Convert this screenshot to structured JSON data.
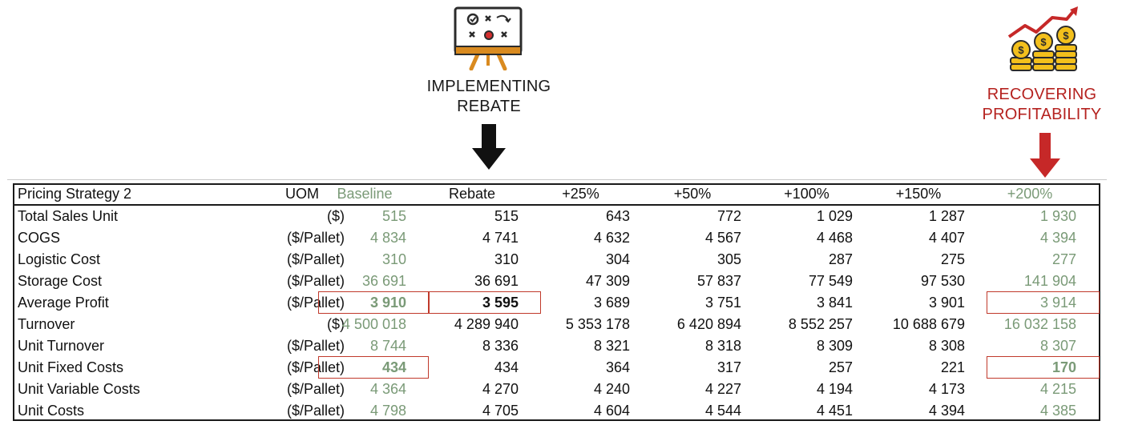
{
  "annotations": {
    "rebate": {
      "line1": "IMPLEMENTING",
      "line2": "REBATE",
      "color": "#1a1a1a"
    },
    "profit": {
      "line1": "RECOVERING",
      "line2": "PROFITABILITY",
      "color": "#b5221f"
    },
    "icons": [
      "strategy-board-icon",
      "rising-coins-icon",
      "arrow-down-icon"
    ]
  },
  "colors": {
    "green_text": "#7a9a77",
    "highlight_box": "#c0392b",
    "red_arrow": "#c62828",
    "black_arrow": "#111111"
  },
  "table": {
    "headers": {
      "label": "Pricing Strategy 2",
      "uom": "UOM",
      "baseline": "Baseline",
      "rebate": "Rebate",
      "p25": "+25%",
      "p50": "+50%",
      "p100": "+100%",
      "p150": "+150%",
      "p200": "+200%"
    },
    "rows": [
      {
        "label": "Total Sales Unit",
        "uom": "($)",
        "baseline": "515",
        "rebate": "515",
        "p25": "643",
        "p50": "772",
        "p100": "1 029",
        "p150": "1 287",
        "p200": "1 930"
      },
      {
        "label": "COGS",
        "uom": "($/Pallet)",
        "baseline": "4 834",
        "rebate": "4 741",
        "p25": "4 632",
        "p50": "4 567",
        "p100": "4 468",
        "p150": "4 407",
        "p200": "4 394"
      },
      {
        "label": "Logistic Cost",
        "uom": "($/Pallet)",
        "baseline": "310",
        "rebate": "310",
        "p25": "304",
        "p50": "305",
        "p100": "287",
        "p150": "275",
        "p200": "277"
      },
      {
        "label": "Storage Cost",
        "uom": "($/Pallet)",
        "baseline": "36 691",
        "rebate": "36 691",
        "p25": "47 309",
        "p50": "57 837",
        "p100": "77 549",
        "p150": "97 530",
        "p200": "141 904"
      },
      {
        "label": "Average Profit",
        "uom": "($/Pallet)",
        "baseline": "3 910",
        "rebate": "3 595",
        "p25": "3 689",
        "p50": "3 751",
        "p100": "3 841",
        "p150": "3 901",
        "p200": "3 914"
      },
      {
        "label": "Turnover",
        "uom": "($)",
        "baseline": "4 500 018",
        "rebate": "4 289 940",
        "p25": "5 353 178",
        "p50": "6 420 894",
        "p100": "8 552 257",
        "p150": "10 688 679",
        "p200": "16 032 158"
      },
      {
        "label": "Unit Turnover",
        "uom": "($/Pallet)",
        "baseline": "8 744",
        "rebate": "8 336",
        "p25": "8 321",
        "p50": "8 318",
        "p100": "8 309",
        "p150": "8 308",
        "p200": "8 307"
      },
      {
        "label": "Unit Fixed Costs",
        "uom": "($/Pallet)",
        "baseline": "434",
        "rebate": "434",
        "p25": "364",
        "p50": "317",
        "p100": "257",
        "p150": "221",
        "p200": "170"
      },
      {
        "label": "Unit Variable Costs",
        "uom": "($/Pallet)",
        "baseline": "4 364",
        "rebate": "4 270",
        "p25": "4 240",
        "p50": "4 227",
        "p100": "4 194",
        "p150": "4 173",
        "p200": "4 215"
      },
      {
        "label": "Unit Costs",
        "uom": "($/Pallet)",
        "baseline": "4 798",
        "rebate": "4 705",
        "p25": "4 604",
        "p50": "4 544",
        "p100": "4 451",
        "p150": "4 394",
        "p200": "4 385"
      }
    ]
  }
}
